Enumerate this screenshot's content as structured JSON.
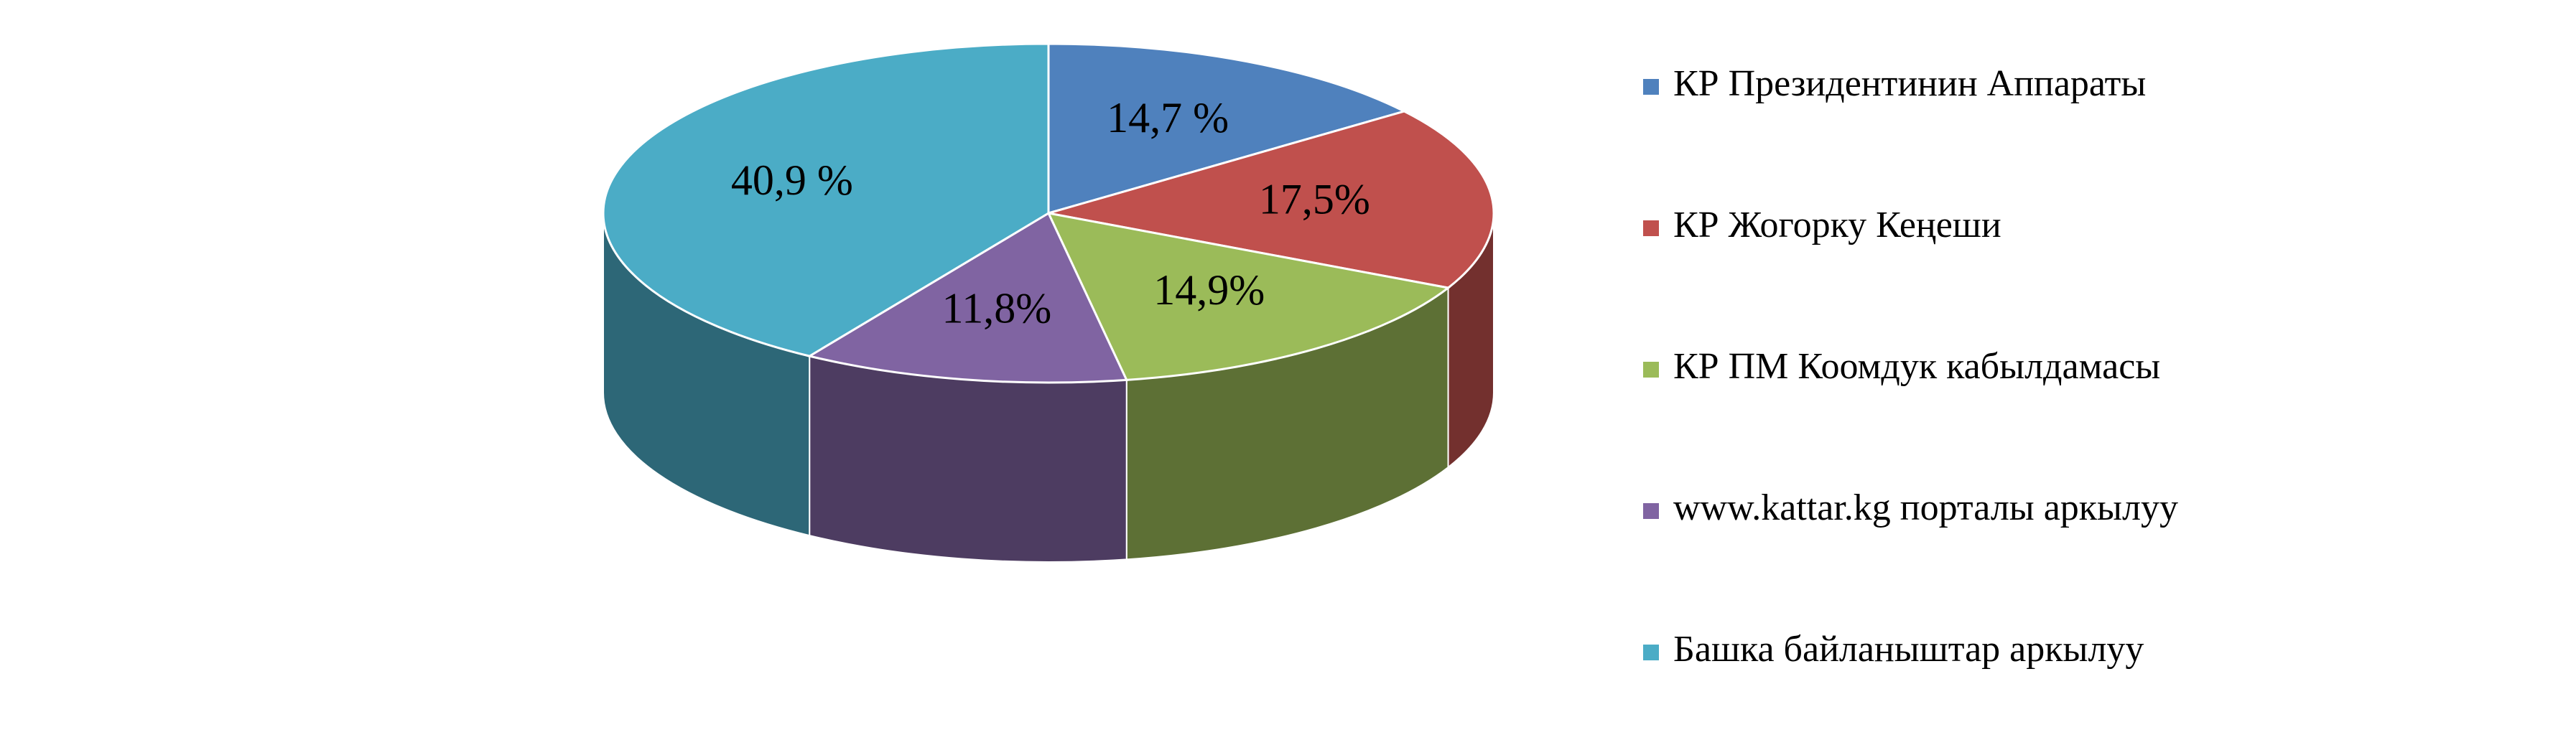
{
  "chart_data": {
    "type": "pie",
    "categories": [
      "КР Президентинин Аппараты",
      "КР Жогорку Кеңеши",
      "КР ПМ Коомдук кабылдамасы",
      "www.kattar.kg порталы аркылуу",
      "Башка байланыштар аркылуу"
    ],
    "values": [
      14.7,
      17.5,
      14.9,
      11.8,
      40.9
    ],
    "value_labels": [
      "14,7 %",
      "17,5%",
      "14,9%",
      "11,8%",
      "40,9 %"
    ],
    "colors": [
      "#4f81bd",
      "#c0504d",
      "#9bbb59",
      "#8064a2",
      "#4bacc6"
    ],
    "legend": "right"
  }
}
